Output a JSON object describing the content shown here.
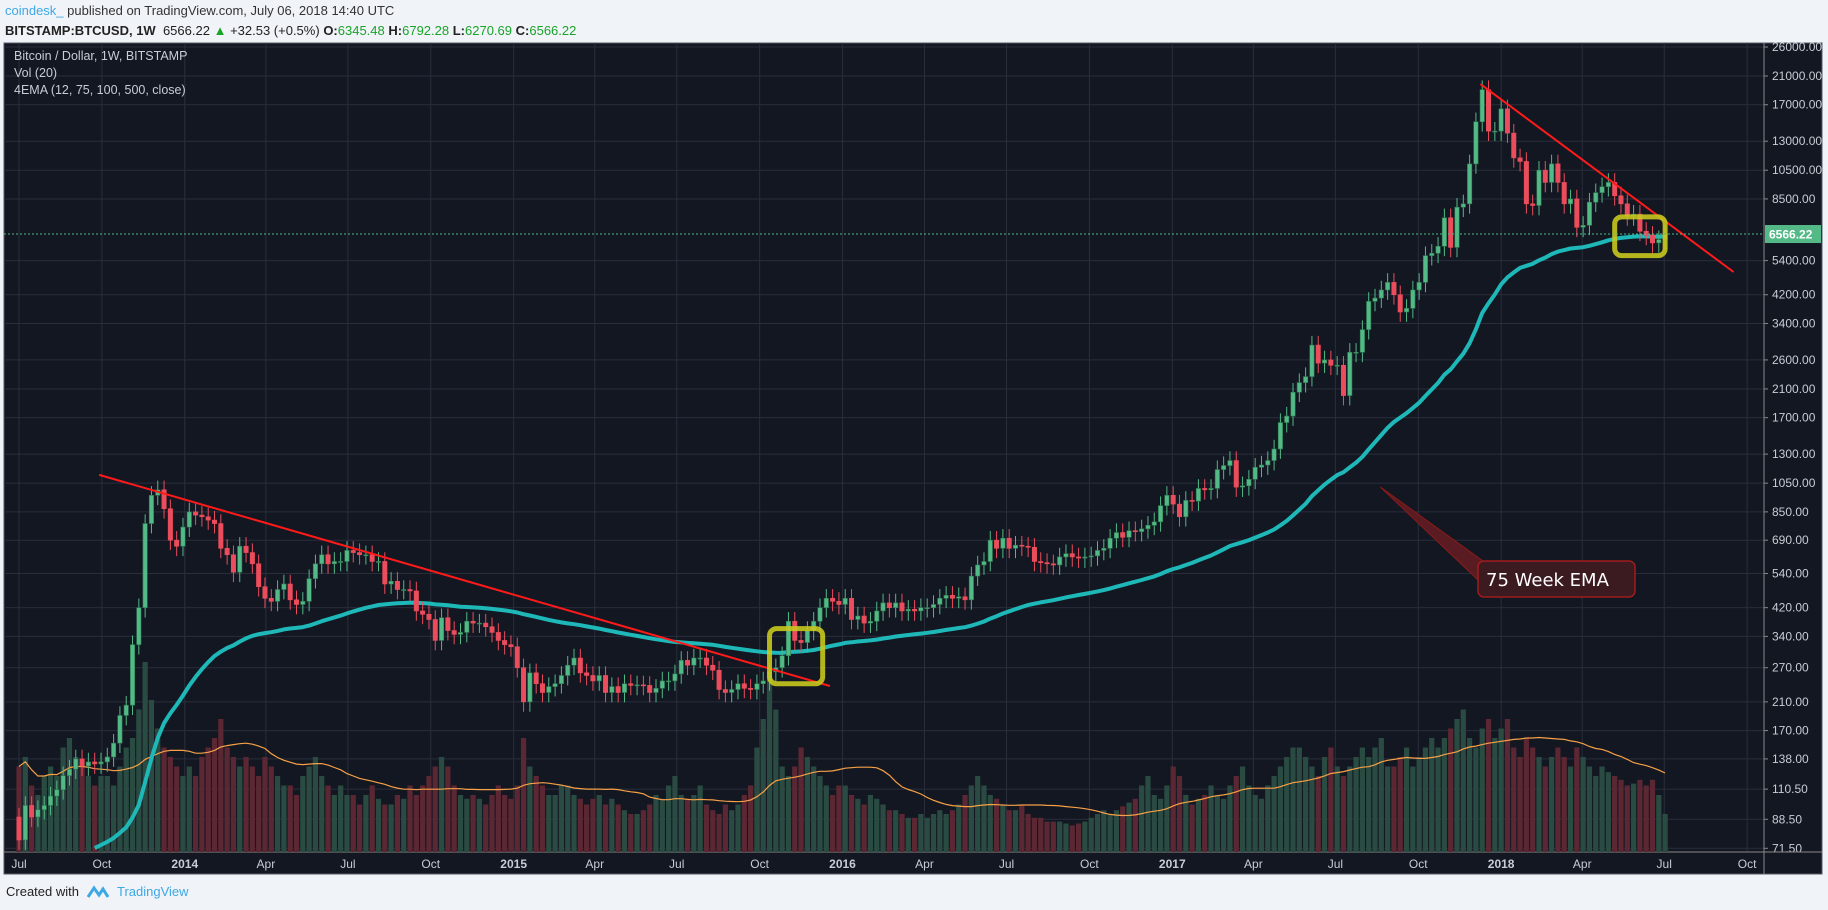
{
  "header": {
    "user": "coindesk_",
    "published": "published on TradingView.com, July 06, 2018 14:40 UTC",
    "symbol": "BITSTAMP:BTCUSD, 1W",
    "last": "6566.22",
    "change": "+32.53 (+0.5%)",
    "o_label": "O:",
    "o": "6345.48",
    "h_label": "H:",
    "h": "6792.28",
    "l_label": "L:",
    "l": "6270.69",
    "c_label": "C:",
    "c": "6566.22"
  },
  "legend": {
    "title": "Bitcoin / Dollar, 1W, BITSTAMP",
    "vol": "Vol (20)",
    "ema": "4EMA (12, 75, 100, 500, close)"
  },
  "footer": {
    "created": "Created with",
    "brand": "TradingView"
  },
  "colors": {
    "background": "#131722",
    "grid": "#2a2e3b",
    "up": "#53b987",
    "down": "#eb4d5c",
    "vol_up": "#2a4b42",
    "vol_down": "#5b2733",
    "ema": "#1fb8b8",
    "vol_ma": "#f7a046",
    "trendline": "#ff1a1a",
    "highlight": "#c8c81e",
    "price_line": "#53b987"
  },
  "chart_data": {
    "type": "candlestick",
    "interval": "1W",
    "scale": "log",
    "grid": true,
    "start_week": "2013-07-01",
    "x_ticks": [
      {
        "date": "2013-07-01",
        "label": "Jul"
      },
      {
        "date": "2013-10-01",
        "label": "Oct"
      },
      {
        "date": "2014-01-01",
        "label": "2014"
      },
      {
        "date": "2014-04-01",
        "label": "Apr"
      },
      {
        "date": "2014-07-01",
        "label": "Jul"
      },
      {
        "date": "2014-10-01",
        "label": "Oct"
      },
      {
        "date": "2015-01-01",
        "label": "2015"
      },
      {
        "date": "2015-04-01",
        "label": "Apr"
      },
      {
        "date": "2015-07-01",
        "label": "Jul"
      },
      {
        "date": "2015-10-01",
        "label": "Oct"
      },
      {
        "date": "2016-01-01",
        "label": "2016"
      },
      {
        "date": "2016-04-01",
        "label": "Apr"
      },
      {
        "date": "2016-07-01",
        "label": "Jul"
      },
      {
        "date": "2016-10-01",
        "label": "Oct"
      },
      {
        "date": "2017-01-01",
        "label": "2017"
      },
      {
        "date": "2017-04-01",
        "label": "Apr"
      },
      {
        "date": "2017-07-01",
        "label": "Jul"
      },
      {
        "date": "2017-10-01",
        "label": "Oct"
      },
      {
        "date": "2018-01-01",
        "label": "2018"
      },
      {
        "date": "2018-04-01",
        "label": "Apr"
      },
      {
        "date": "2018-07-01",
        "label": "Jul"
      },
      {
        "date": "2018-10-01",
        "label": "Oct"
      }
    ],
    "y_ticks": [
      "26000.00",
      "21000.00",
      "17000.00",
      "13000.00",
      "10500.00",
      "8500.00",
      "5400.00",
      "4200.00",
      "3400.00",
      "2600.00",
      "2100.00",
      "1700.00",
      "1300.00",
      "1050.00",
      "850.00",
      "690.00",
      "540.00",
      "420.00",
      "340.00",
      "270.00",
      "210.00",
      "170.00",
      "138.00",
      "110.50",
      "88.50",
      "71.50"
    ],
    "ylim": [
      71.5,
      26000
    ],
    "last_price_label": "6566.22",
    "first_open": 90,
    "close": [
      76,
      98,
      90,
      95,
      98,
      105,
      110,
      122,
      128,
      138,
      131,
      135,
      133,
      135,
      140,
      155,
      190,
      205,
      320,
      420,
      780,
      960,
      1000,
      870,
      690,
      660,
      760,
      850,
      830,
      820,
      800,
      780,
      650,
      620,
      545,
      660,
      630,
      580,
      490,
      450,
      440,
      480,
      500,
      445,
      430,
      440,
      520,
      580,
      620,
      580,
      590,
      590,
      640,
      630,
      620,
      620,
      590,
      590,
      500,
      510,
      480,
      480,
      475,
      410,
      400,
      385,
      330,
      390,
      355,
      345,
      350,
      380,
      375,
      375,
      365,
      350,
      330,
      320,
      315,
      270,
      210,
      260,
      240,
      225,
      235,
      240,
      255,
      275,
      290,
      260,
      255,
      245,
      255,
      225,
      235,
      225,
      240,
      237,
      238,
      237,
      225,
      232,
      245,
      245,
      258,
      285,
      275,
      290,
      290,
      275,
      265,
      230,
      225,
      230,
      240,
      232,
      230,
      240,
      245,
      262,
      270,
      295,
      380,
      330,
      325,
      355,
      380,
      420,
      450,
      440,
      430,
      450,
      385,
      395,
      375,
      380,
      410,
      435,
      420,
      435,
      410,
      415,
      410,
      420,
      420,
      430,
      450,
      460,
      450,
      455,
      445,
      530,
      575,
      590,
      690,
      650,
      700,
      650,
      665,
      660,
      655,
      590,
      585,
      580,
      575,
      610,
      625,
      610,
      605,
      610,
      615,
      640,
      650,
      700,
      730,
      705,
      740,
      735,
      750,
      770,
      790,
      890,
      960,
      900,
      820,
      925,
      920,
      1010,
      1000,
      1010,
      1160,
      1195,
      1240,
      1020,
      1030,
      1080,
      1180,
      1200,
      1240,
      1350,
      1640,
      1720,
      2050,
      2200,
      2300,
      2900,
      2540,
      2600,
      2500,
      2500,
      2000,
      2750,
      2750,
      3250,
      4000,
      4100,
      4350,
      4600,
      4200,
      3700,
      3800,
      4350,
      4600,
      5600,
      5700,
      6000,
      7400,
      5950,
      8000,
      8200,
      11000,
      15000,
      19000,
      14000,
      14000,
      16500,
      13800,
      11500,
      11200,
      8200,
      8100,
      10500,
      9600,
      11000,
      9600,
      8200,
      8500,
      6900,
      7000,
      8300,
      8900,
      9300,
      9600,
      8700,
      8200,
      7500,
      7600,
      6700,
      6500,
      6150,
      6300,
      6566.22
    ],
    "volume_relative": [
      45,
      50,
      35,
      30,
      40,
      45,
      40,
      55,
      60,
      50,
      45,
      40,
      35,
      40,
      40,
      35,
      45,
      55,
      60,
      75,
      100,
      80,
      65,
      55,
      50,
      45,
      40,
      45,
      40,
      50,
      55,
      60,
      70,
      55,
      50,
      45,
      50,
      45,
      40,
      50,
      45,
      40,
      35,
      35,
      30,
      40,
      45,
      50,
      40,
      35,
      30,
      35,
      30,
      30,
      25,
      30,
      35,
      28,
      25,
      25,
      30,
      28,
      35,
      30,
      35,
      40,
      45,
      50,
      45,
      35,
      30,
      28,
      30,
      28,
      25,
      30,
      35,
      30,
      28,
      35,
      60,
      45,
      40,
      35,
      30,
      30,
      35,
      35,
      30,
      28,
      25,
      28,
      30,
      25,
      28,
      25,
      22,
      20,
      20,
      22,
      25,
      30,
      28,
      35,
      40,
      30,
      28,
      30,
      35,
      25,
      22,
      20,
      25,
      22,
      25,
      30,
      35,
      55,
      70,
      90,
      75,
      45,
      40,
      45,
      55,
      50,
      45,
      40,
      35,
      30,
      35,
      35,
      30,
      28,
      25,
      30,
      28,
      25,
      22,
      22,
      20,
      18,
      18,
      20,
      18,
      20,
      22,
      20,
      22,
      25,
      30,
      35,
      40,
      35,
      30,
      28,
      25,
      22,
      22,
      25,
      20,
      18,
      18,
      16,
      16,
      16,
      15,
      14,
      15,
      16,
      18,
      20,
      22,
      20,
      22,
      24,
      26,
      28,
      35,
      40,
      30,
      28,
      35,
      45,
      40,
      30,
      25,
      28,
      30,
      35,
      30,
      28,
      35,
      40,
      45,
      35,
      30,
      28,
      35,
      40,
      45,
      50,
      55,
      55,
      50,
      45,
      40,
      50,
      55,
      45,
      40,
      45,
      50,
      55,
      50,
      55,
      60,
      45,
      45,
      50,
      55,
      45,
      50,
      55,
      60,
      55,
      60,
      65,
      70,
      75,
      60,
      55,
      65,
      70,
      60,
      65,
      70,
      55,
      50,
      60,
      55,
      50,
      45,
      50,
      55,
      50,
      45,
      55,
      50,
      45,
      40,
      45,
      42,
      40,
      38,
      35,
      36,
      38,
      35,
      38,
      30,
      20
    ],
    "indicators": {
      "ema_period": 75,
      "volume_ma_period": 20
    },
    "trendlines": [
      {
        "from": {
          "date": "2013-09-28",
          "price": 1116
        },
        "to": {
          "date": "2015-12-18",
          "price": 236
        }
      },
      {
        "from": {
          "date": "2017-12-09",
          "price": 19800
        },
        "to": {
          "date": "2018-09-16",
          "price": 4965
        }
      }
    ],
    "highlights": [
      {
        "from": {
          "date": "2015-10-12",
          "price": 360
        },
        "to": {
          "date": "2015-12-10",
          "price": 240
        }
      },
      {
        "from": {
          "date": "2018-05-07",
          "price": 7450
        },
        "to": {
          "date": "2018-07-02",
          "price": 5600
        }
      }
    ],
    "annotation": {
      "text": "75 Week EMA",
      "points_to": {
        "date": "2017-08-20",
        "price": 1020
      }
    }
  }
}
